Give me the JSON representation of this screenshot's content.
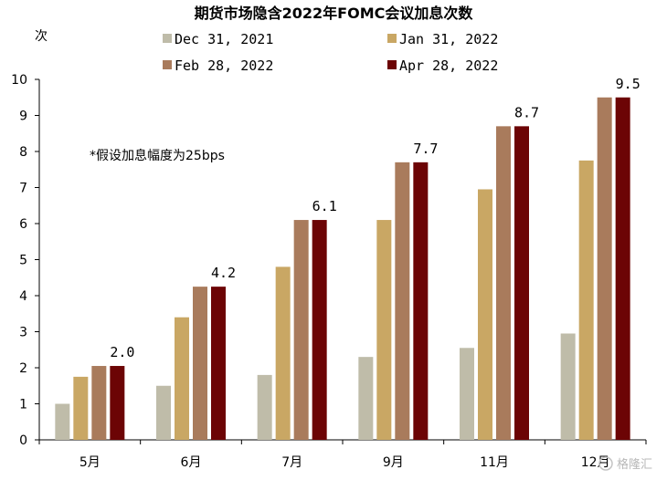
{
  "chart_data": {
    "type": "bar",
    "title": "期货市场隐含2022年FOMC会议加息次数",
    "ylabel": "次",
    "ylim": [
      0,
      10
    ],
    "yticks": [
      0,
      1,
      2,
      3,
      4,
      5,
      6,
      7,
      8,
      9,
      10
    ],
    "categories": [
      "5月",
      "6月",
      "7月",
      "9月",
      "11月",
      "12月"
    ],
    "series": [
      {
        "name": "Dec 31, 2021",
        "color": "#bfbca9",
        "values": [
          1.0,
          1.5,
          1.8,
          2.3,
          2.55,
          2.95
        ]
      },
      {
        "name": "Jan 31, 2022",
        "color": "#c9a764",
        "values": [
          1.75,
          3.4,
          4.8,
          6.1,
          6.95,
          7.75
        ]
      },
      {
        "name": "Feb 28, 2022",
        "color": "#a97b5c",
        "values": [
          2.05,
          4.25,
          6.1,
          7.7,
          8.7,
          9.5
        ]
      },
      {
        "name": "Apr 28, 2022",
        "color": "#6c0405",
        "values": [
          2.05,
          4.25,
          6.1,
          7.7,
          8.7,
          9.5
        ]
      }
    ],
    "data_labels": [
      "2.0",
      "4.2",
      "6.1",
      "7.7",
      "8.7",
      "9.5"
    ],
    "annotation": "*假设加息幅度为25bps",
    "legend_position": "top",
    "grid": false
  },
  "watermark": "格隆汇"
}
